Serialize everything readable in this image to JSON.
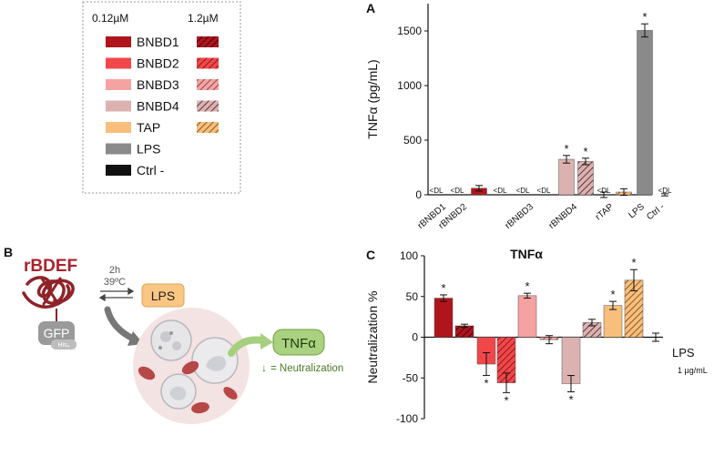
{
  "legend": {
    "low_conc": "0.12µM",
    "high_conc": "1.2µM",
    "entries": [
      {
        "label": "BNBD1",
        "color": "#b0141c",
        "hatch_color": "#3b0a0c",
        "hatch": true
      },
      {
        "label": "BNBD2",
        "color": "#f2474a",
        "hatch_color": "#8b1a1c",
        "hatch": true
      },
      {
        "label": "BNBD3",
        "color": "#f5a2a3",
        "hatch_color": "#8a4a4c",
        "hatch": true
      },
      {
        "label": "BNBD4",
        "color": "#dcb2b1",
        "hatch_color": "#5a3a3a",
        "hatch": true
      },
      {
        "label": "TAP",
        "color": "#f8bf7c",
        "hatch_color": "#8a5a20",
        "hatch": true
      },
      {
        "label": "LPS",
        "color": "#8a8a8a",
        "hatch_color": "#8a8a8a",
        "hatch": false
      },
      {
        "label": "Ctrl -",
        "color": "#111111",
        "hatch_color": "#111111",
        "hatch": false
      }
    ]
  },
  "panel_b": {
    "letter": "B",
    "title": "rBDEF",
    "tag": "GFP",
    "tag_sub": "His₆",
    "incubation_time": "2h",
    "incubation_temp": "39ºC",
    "stimulus": "LPS",
    "readout": "TNFα",
    "readout_note": "= Neutralization",
    "down_arrow": "↓"
  },
  "chart_data": [
    {
      "panel": "A",
      "type": "bar",
      "ylabel": "TNFα (pg/mL)",
      "ylim": [
        0,
        1750
      ],
      "yticks": [
        0,
        500,
        1000,
        1500
      ],
      "categories": [
        "rBNBD1",
        "rBNBD2",
        "rBNBD3",
        "rBNBD4",
        "rTAP",
        "LPS",
        "Ctrl -"
      ],
      "bars": [
        {
          "label": "<DL",
          "value": 0,
          "error": 0,
          "color": "#b0141c",
          "hatch": false,
          "sig": false
        },
        {
          "label": "<DL",
          "value": 0,
          "error": 0,
          "color": "#b0141c",
          "hatch": true,
          "sig": false
        },
        {
          "label": "",
          "value": 60,
          "error": 25,
          "color": "#b0141c",
          "hatch": false,
          "sig": false
        },
        {
          "label": "<DL",
          "value": 0,
          "error": 0,
          "color": "#f2474a",
          "hatch": true,
          "sig": false
        },
        {
          "label": "<DL",
          "value": 0,
          "error": 0,
          "color": "#f5a2a3",
          "hatch": false,
          "sig": false
        },
        {
          "label": "<DL",
          "value": 0,
          "error": 0,
          "color": "#f5a2a3",
          "hatch": true,
          "sig": false
        },
        {
          "label": "",
          "value": 325,
          "error": 35,
          "color": "#dcb2b1",
          "hatch": false,
          "sig": true
        },
        {
          "label": "",
          "value": 305,
          "error": 30,
          "color": "#dcb2b1",
          "hatch": true,
          "sig": true
        },
        {
          "label": "<DL",
          "value": 0,
          "error": 25,
          "color": "#f8bf7c",
          "hatch": false,
          "sig": false
        },
        {
          "label": "",
          "value": 25,
          "error": 30,
          "color": "#f8bf7c",
          "hatch": true,
          "sig": false
        },
        {
          "label": "",
          "value": 1505,
          "error": 60,
          "color": "#8a8a8a",
          "hatch": false,
          "sig": true
        },
        {
          "label": "<DL",
          "value": 0,
          "error": 10,
          "color": "#111111",
          "hatch": false,
          "sig": false
        }
      ]
    },
    {
      "panel": "C",
      "type": "bar",
      "title": "TNFα",
      "ylabel": "Neutralization %",
      "ylim": [
        -100,
        100
      ],
      "yticks": [
        -100,
        -50,
        0,
        50,
        100
      ],
      "baseline_label": "LPS",
      "baseline_sub": "1 µg/mL",
      "bars": [
        {
          "value": 48,
          "error": 4,
          "color": "#b0141c",
          "hatch": false,
          "sig": true
        },
        {
          "value": 14,
          "error": 2,
          "color": "#b0141c",
          "hatch": true,
          "sig": false
        },
        {
          "value": -33,
          "error": 14,
          "color": "#f2474a",
          "hatch": false,
          "sig": true
        },
        {
          "value": -56,
          "error": 12,
          "color": "#f2474a",
          "hatch": true,
          "sig": true
        },
        {
          "value": 51,
          "error": 3,
          "color": "#f5a2a3",
          "hatch": false,
          "sig": true
        },
        {
          "value": -3,
          "error": 5,
          "color": "#f5a2a3",
          "hatch": true,
          "sig": false
        },
        {
          "value": -57,
          "error": 10,
          "color": "#dcb2b1",
          "hatch": false,
          "sig": true
        },
        {
          "value": 18,
          "error": 4,
          "color": "#dcb2b1",
          "hatch": true,
          "sig": false
        },
        {
          "value": 39,
          "error": 5,
          "color": "#f8bf7c",
          "hatch": false,
          "sig": true
        },
        {
          "value": 70,
          "error": 13,
          "color": "#f8bf7c",
          "hatch": true,
          "sig": true
        },
        {
          "value": 0,
          "error": 5,
          "color": "#111111",
          "hatch": false,
          "sig": false
        }
      ]
    }
  ]
}
